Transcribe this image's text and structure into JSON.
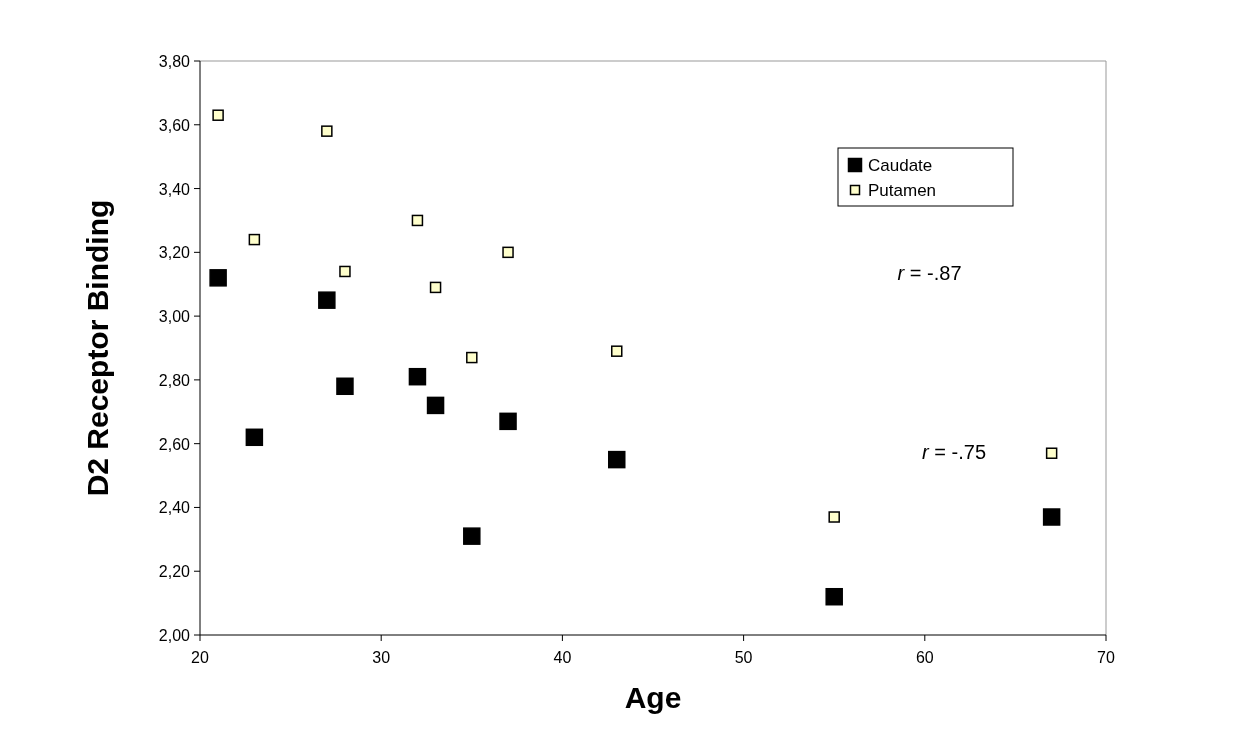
{
  "chart_data": {
    "type": "scatter",
    "xlabel": "Age",
    "ylabel": "D2 Receptor Binding",
    "xlim": [
      20,
      70
    ],
    "xticks": [
      20,
      30,
      40,
      50,
      60,
      70
    ],
    "ylim": [
      2.0,
      3.8
    ],
    "yticks": [
      {
        "value": 2.0,
        "label": "2,00"
      },
      {
        "value": 2.2,
        "label": "2,20"
      },
      {
        "value": 2.4,
        "label": "2,40"
      },
      {
        "value": 2.6,
        "label": "2,60"
      },
      {
        "value": 2.8,
        "label": "2,80"
      },
      {
        "value": 3.0,
        "label": "3,00"
      },
      {
        "value": 3.2,
        "label": "3,20"
      },
      {
        "value": 3.4,
        "label": "3,40"
      },
      {
        "value": 3.6,
        "label": "3,60"
      },
      {
        "value": 3.8,
        "label": "3,80"
      }
    ],
    "grid": false,
    "legend": "top right",
    "marker": "square",
    "series": [
      {
        "name": "Caudate",
        "color": "#000000",
        "x": [
          21,
          23,
          27,
          28,
          32,
          33,
          37,
          43,
          35,
          55,
          67
        ],
        "values": [
          3.12,
          2.62,
          3.05,
          2.78,
          2.81,
          2.72,
          2.67,
          2.55,
          2.31,
          2.12,
          2.37
        ]
      },
      {
        "name": "Putamen",
        "color": "#ffffcc",
        "x": [
          21,
          23,
          27,
          28,
          32,
          33,
          37,
          43,
          35,
          55,
          67
        ],
        "values": [
          3.63,
          3.24,
          3.58,
          3.14,
          3.3,
          3.09,
          3.2,
          2.89,
          2.87,
          2.37,
          2.57
        ]
      }
    ],
    "annotations": [
      "r = -.87",
      "r = -.75"
    ]
  }
}
